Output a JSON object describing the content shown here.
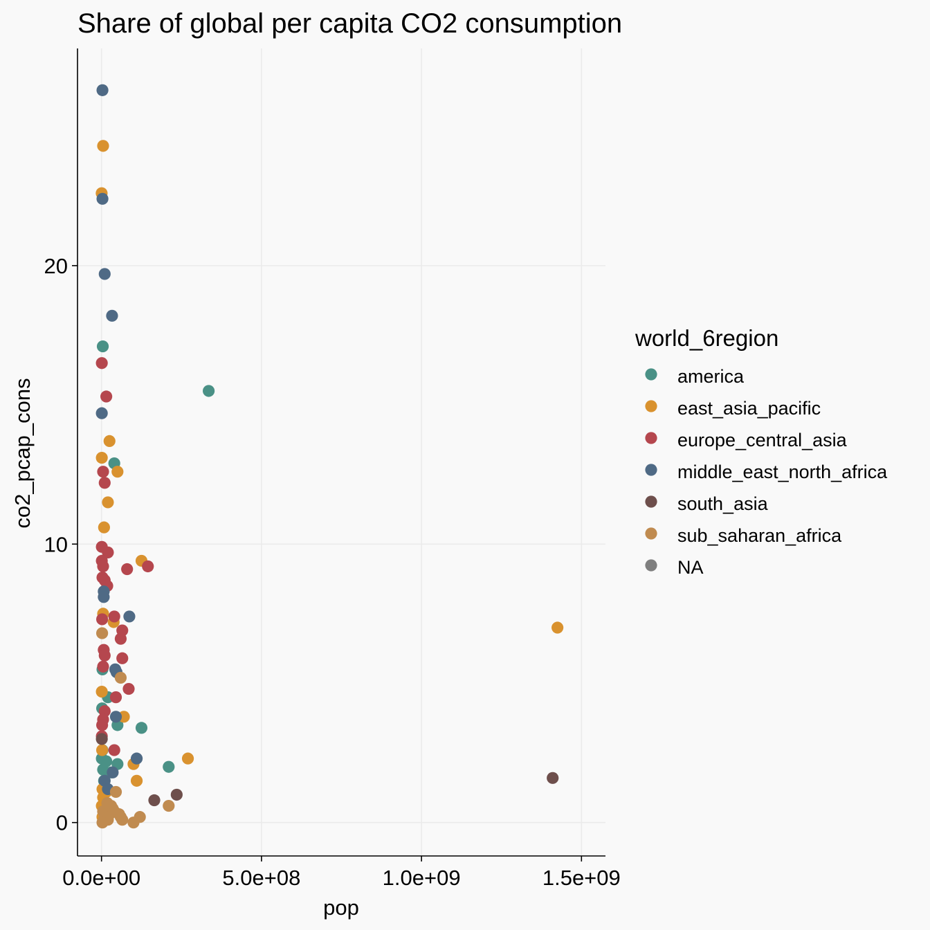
{
  "chart_data": {
    "type": "scatter",
    "title": "Share of global per capita CO2 consumption",
    "xlabel": "pop",
    "ylabel": "co2_pcap_cons",
    "xlim": [
      -75000000,
      1575000000
    ],
    "ylim": [
      -1.2,
      27.8
    ],
    "xticks": [
      {
        "value": 0,
        "label": "0.0e+00"
      },
      {
        "value": 500000000,
        "label": "5.0e+08"
      },
      {
        "value": 1000000000,
        "label": "1.0e+09"
      },
      {
        "value": 1500000000,
        "label": "1.5e+09"
      }
    ],
    "yticks": [
      {
        "value": 0,
        "label": "0"
      },
      {
        "value": 10,
        "label": "10"
      },
      {
        "value": 20,
        "label": "20"
      }
    ],
    "grid": true,
    "legend": {
      "title": "world_6region",
      "position": "right",
      "entries": [
        {
          "key": "america",
          "label": "america",
          "color": "#4a9186"
        },
        {
          "key": "east_asia_pacific",
          "label": "east_asia_pacific",
          "color": "#d9922f"
        },
        {
          "key": "europe_central_asia",
          "label": "europe_central_asia",
          "color": "#b5474e"
        },
        {
          "key": "middle_east_north_africa",
          "label": "middle_east_north_africa",
          "color": "#4f6a85"
        },
        {
          "key": "south_asia",
          "label": "south_asia",
          "color": "#6e4f4c"
        },
        {
          "key": "sub_saharan_africa",
          "label": "sub_saharan_africa",
          "color": "#c08b50"
        },
        {
          "key": "NA",
          "label": "NA",
          "color": "#7f7f7f"
        }
      ]
    },
    "series": [
      {
        "name": "america",
        "points": [
          [
            335000000,
            15.5
          ],
          [
            4000000,
            17.1
          ],
          [
            40000000,
            12.9
          ],
          [
            125000000,
            3.4
          ],
          [
            210000000,
            2.0
          ],
          [
            50000000,
            3.5
          ],
          [
            50000000,
            2.1
          ],
          [
            30000000,
            1.8
          ],
          [
            20000000,
            4.5
          ],
          [
            3000000,
            5.5
          ],
          [
            2000000,
            4.1
          ],
          [
            1000000,
            2.3
          ],
          [
            5000000,
            1.9
          ],
          [
            8000000,
            1.5
          ],
          [
            3000000,
            2.6
          ],
          [
            15000000,
            2.2
          ]
        ]
      },
      {
        "name": "east_asia_pacific",
        "points": [
          [
            1425000000,
            7.0
          ],
          [
            5000000,
            24.3
          ],
          [
            500000,
            22.6
          ],
          [
            25000000,
            13.7
          ],
          [
            1000000,
            13.1
          ],
          [
            50000000,
            12.6
          ],
          [
            20000000,
            11.5
          ],
          [
            8000000,
            10.6
          ],
          [
            125000000,
            9.4
          ],
          [
            5000000,
            7.5
          ],
          [
            38000000,
            7.2
          ],
          [
            1000000,
            4.7
          ],
          [
            70000000,
            3.8
          ],
          [
            270000000,
            2.3
          ],
          [
            100000000,
            2.1
          ],
          [
            110000000,
            1.5
          ],
          [
            2000000,
            2.6
          ],
          [
            3000000,
            1.2
          ],
          [
            5000000,
            0.9
          ],
          [
            10000000,
            0.5
          ],
          [
            3000000,
            0.2
          ],
          [
            1000000,
            0.6
          ],
          [
            6000000,
            0.3
          ],
          [
            15000000,
            1.1
          ]
        ]
      },
      {
        "name": "europe_central_asia",
        "points": [
          [
            1000000,
            16.5
          ],
          [
            15000000,
            15.3
          ],
          [
            5000000,
            12.6
          ],
          [
            10000000,
            12.2
          ],
          [
            1000000,
            9.9
          ],
          [
            20000000,
            9.7
          ],
          [
            1000000,
            9.4
          ],
          [
            5000000,
            9.2
          ],
          [
            80000000,
            9.1
          ],
          [
            145000000,
            9.2
          ],
          [
            3000000,
            8.8
          ],
          [
            10000000,
            8.7
          ],
          [
            18000000,
            8.5
          ],
          [
            2000000,
            7.3
          ],
          [
            40000000,
            7.4
          ],
          [
            65000000,
            6.9
          ],
          [
            60000000,
            6.6
          ],
          [
            7000000,
            6.2
          ],
          [
            10000000,
            6.0
          ],
          [
            65000000,
            5.9
          ],
          [
            5000000,
            5.6
          ],
          [
            85000000,
            4.8
          ],
          [
            45000000,
            4.5
          ],
          [
            10000000,
            4.0
          ],
          [
            5000000,
            3.7
          ],
          [
            2000000,
            3.5
          ],
          [
            1000000,
            3.1
          ],
          [
            40000000,
            2.6
          ]
        ]
      },
      {
        "name": "middle_east_north_africa",
        "points": [
          [
            3000000,
            26.3
          ],
          [
            3000000,
            22.4
          ],
          [
            10000000,
            19.7
          ],
          [
            33000000,
            18.2
          ],
          [
            1000000,
            14.7
          ],
          [
            7000000,
            8.3
          ],
          [
            7000000,
            8.1
          ],
          [
            87000000,
            7.4
          ],
          [
            43000000,
            5.5
          ],
          [
            47000000,
            5.4
          ],
          [
            45000000,
            3.8
          ],
          [
            110000000,
            2.3
          ],
          [
            35000000,
            1.8
          ],
          [
            10000000,
            1.5
          ],
          [
            20000000,
            1.2
          ]
        ]
      },
      {
        "name": "south_asia",
        "points": [
          [
            1410000000,
            1.6
          ],
          [
            165000000,
            0.8
          ],
          [
            235000000,
            1.0
          ],
          [
            1000000,
            3.0
          ]
        ]
      },
      {
        "name": "sub_saharan_africa",
        "points": [
          [
            60000000,
            5.2
          ],
          [
            2000000,
            6.8
          ],
          [
            210000000,
            0.6
          ],
          [
            120000000,
            0.2
          ],
          [
            100000000,
            0.0
          ],
          [
            40000000,
            0.4
          ],
          [
            55000000,
            0.3
          ],
          [
            30000000,
            0.6
          ],
          [
            20000000,
            0.1
          ],
          [
            15000000,
            0.2
          ],
          [
            8000000,
            0.1
          ],
          [
            25000000,
            0.3
          ],
          [
            45000000,
            1.1
          ],
          [
            5000000,
            0.4
          ],
          [
            12000000,
            0.2
          ],
          [
            60000000,
            0.2
          ],
          [
            35000000,
            0.5
          ],
          [
            18000000,
            0.7
          ],
          [
            3000000,
            0.0
          ],
          [
            65000000,
            0.1
          ]
        ]
      },
      {
        "name": "NA",
        "points": []
      }
    ]
  }
}
